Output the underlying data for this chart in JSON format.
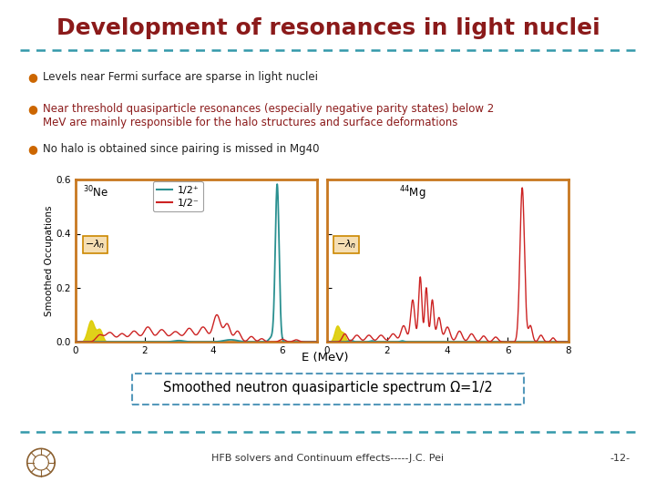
{
  "title": "Development of resonances in light nuclei",
  "title_color": "#8B1A1A",
  "title_fontsize": 18,
  "bullet_color": "#CC6600",
  "bullet_texts": [
    "Levels near Fermi surface are sparse in light nuclei",
    "Near threshold quasiparticle resonances (especially negative parity states) below 2\nMeV are mainly responsible for the halo structures and surface deformations",
    "No halo is obtained since pairing is missed in Mg40"
  ],
  "bullet_colors": [
    "#222222",
    "#8B1A1A",
    "#222222"
  ],
  "caption_box": "Smoothed neutron quasiparticle spectrum Ω=1/2",
  "caption_box_color": "#5599BB",
  "footer_text": "HFB solvers and Continuum effects-----J.C. Pei",
  "footer_right": "-12-",
  "dashed_line_color": "#3399AA",
  "ylabel": "Smoothed Occupations",
  "xlabel": "E (MeV)",
  "legend_plus": "1/2⁺",
  "legend_minus": "1/2⁻",
  "teal_color": "#2A9090",
  "red_color": "#CC2222",
  "yellow_color": "#CCCC00",
  "frame_color": "#C87820",
  "background": "#FFFFFF"
}
